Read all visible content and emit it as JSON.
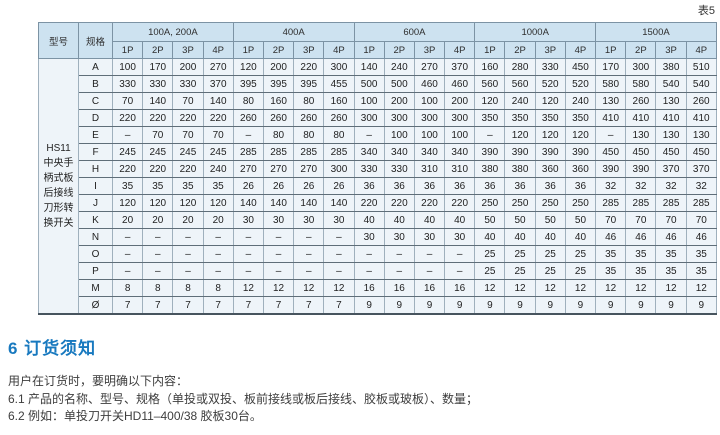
{
  "page": {
    "table_caption": "表5"
  },
  "table": {
    "col_model": "型号",
    "col_spec": "规格",
    "model_lines": [
      "HS11",
      "中央手",
      "柄式板",
      "后接线",
      "刀形转",
      "换开关"
    ],
    "groups": [
      {
        "label": "100A, 200A",
        "subcols": [
          "1P",
          "2P",
          "3P",
          "4P"
        ]
      },
      {
        "label": "400A",
        "subcols": [
          "1P",
          "2P",
          "3P",
          "4P"
        ]
      },
      {
        "label": "600A",
        "subcols": [
          "1P",
          "2P",
          "3P",
          "4P"
        ]
      },
      {
        "label": "1000A",
        "subcols": [
          "1P",
          "2P",
          "3P",
          "4P"
        ]
      },
      {
        "label": "1500A",
        "subcols": [
          "1P",
          "2P",
          "3P",
          "4P"
        ]
      }
    ],
    "rows": [
      {
        "label": "A",
        "values": [
          "100",
          "170",
          "200",
          "270",
          "120",
          "200",
          "220",
          "300",
          "140",
          "240",
          "270",
          "370",
          "160",
          "280",
          "330",
          "450",
          "170",
          "300",
          "380",
          "510"
        ]
      },
      {
        "label": "B",
        "values": [
          "330",
          "330",
          "330",
          "370",
          "395",
          "395",
          "395",
          "455",
          "500",
          "500",
          "460",
          "460",
          "560",
          "560",
          "520",
          "520",
          "580",
          "580",
          "540",
          "540"
        ]
      },
      {
        "label": "C",
        "values": [
          "70",
          "140",
          "70",
          "140",
          "80",
          "160",
          "80",
          "160",
          "100",
          "200",
          "100",
          "200",
          "120",
          "240",
          "120",
          "240",
          "130",
          "260",
          "130",
          "260"
        ]
      },
      {
        "label": "D",
        "values": [
          "220",
          "220",
          "220",
          "220",
          "260",
          "260",
          "260",
          "260",
          "300",
          "300",
          "300",
          "300",
          "350",
          "350",
          "350",
          "350",
          "410",
          "410",
          "410",
          "410"
        ]
      },
      {
        "label": "E",
        "values": [
          "–",
          "70",
          "70",
          "70",
          "–",
          "80",
          "80",
          "80",
          "–",
          "100",
          "100",
          "100",
          "–",
          "120",
          "120",
          "120",
          "–",
          "130",
          "130",
          "130"
        ]
      },
      {
        "label": "F",
        "values": [
          "245",
          "245",
          "245",
          "245",
          "285",
          "285",
          "285",
          "285",
          "340",
          "340",
          "340",
          "340",
          "390",
          "390",
          "390",
          "390",
          "450",
          "450",
          "450",
          "450"
        ]
      },
      {
        "label": "H",
        "values": [
          "220",
          "220",
          "220",
          "240",
          "270",
          "270",
          "270",
          "300",
          "330",
          "330",
          "310",
          "310",
          "380",
          "380",
          "360",
          "360",
          "390",
          "390",
          "370",
          "370"
        ]
      },
      {
        "label": "I",
        "values": [
          "35",
          "35",
          "35",
          "35",
          "26",
          "26",
          "26",
          "26",
          "36",
          "36",
          "36",
          "36",
          "36",
          "36",
          "36",
          "36",
          "32",
          "32",
          "32",
          "32"
        ]
      },
      {
        "label": "J",
        "values": [
          "120",
          "120",
          "120",
          "120",
          "140",
          "140",
          "140",
          "140",
          "220",
          "220",
          "220",
          "220",
          "250",
          "250",
          "250",
          "250",
          "285",
          "285",
          "285",
          "285"
        ]
      },
      {
        "label": "K",
        "values": [
          "20",
          "20",
          "20",
          "20",
          "30",
          "30",
          "30",
          "30",
          "40",
          "40",
          "40",
          "40",
          "50",
          "50",
          "50",
          "50",
          "70",
          "70",
          "70",
          "70"
        ]
      },
      {
        "label": "N",
        "values": [
          "–",
          "–",
          "–",
          "–",
          "–",
          "–",
          "–",
          "–",
          "30",
          "30",
          "30",
          "30",
          "40",
          "40",
          "40",
          "40",
          "46",
          "46",
          "46",
          "46"
        ]
      },
      {
        "label": "O",
        "values": [
          "–",
          "–",
          "–",
          "–",
          "–",
          "–",
          "–",
          "–",
          "–",
          "–",
          "–",
          "–",
          "25",
          "25",
          "25",
          "25",
          "35",
          "35",
          "35",
          "35"
        ]
      },
      {
        "label": "P",
        "values": [
          "–",
          "–",
          "–",
          "–",
          "–",
          "–",
          "–",
          "–",
          "–",
          "–",
          "–",
          "–",
          "25",
          "25",
          "25",
          "25",
          "35",
          "35",
          "35",
          "35"
        ]
      },
      {
        "label": "M",
        "values": [
          "8",
          "8",
          "8",
          "8",
          "12",
          "12",
          "12",
          "12",
          "16",
          "16",
          "16",
          "16",
          "12",
          "12",
          "12",
          "12",
          "12",
          "12",
          "12",
          "12"
        ]
      },
      {
        "label": "Ø",
        "values": [
          "7",
          "7",
          "7",
          "7",
          "7",
          "7",
          "7",
          "7",
          "9",
          "9",
          "9",
          "9",
          "9",
          "9",
          "9",
          "9",
          "9",
          "9",
          "9",
          "9"
        ]
      }
    ]
  },
  "section": {
    "heading": "6 订货须知",
    "lines": [
      "用户在订货时，要明确以下内容：",
      "6.1 产品的名称、型号、规格（单投或双投、板前接线或板后接线、胶板或玻板）、数量；",
      "6.2 例如：单投刀开关HD11–400/38 胶板30台。"
    ]
  },
  "colors": {
    "header_bg": "#cde2f0",
    "body_bg": "#eef4f9",
    "heading_blue": "#1879bf"
  }
}
